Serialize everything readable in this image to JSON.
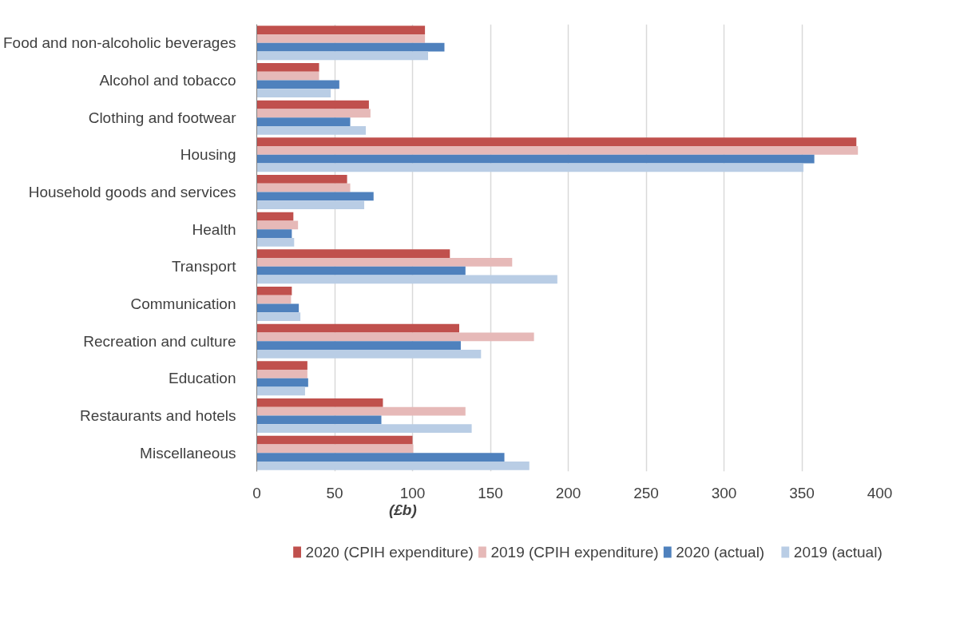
{
  "chart_data": {
    "type": "bar",
    "orientation": "horizontal",
    "xlabel": "(£b)",
    "categories": [
      "Food and non-alcoholic beverages",
      "Alcohol and tobacco",
      "Clothing and footwear",
      "Housing",
      "Household goods and services",
      "Health",
      "Transport",
      "Communication",
      "Recreation and culture",
      "Education",
      "Restaurants and hotels",
      "Miscellaneous"
    ],
    "series": [
      {
        "name": "2020 (CPIH expenditure)",
        "color": "#c0504d",
        "values": [
          108,
          40,
          72,
          385,
          58,
          23.5,
          124,
          22.5,
          130,
          32.5,
          81,
          100
        ]
      },
      {
        "name": "2019 (CPIH expenditure)",
        "color": "#e6b9b8",
        "values": [
          108,
          40,
          73,
          386,
          60,
          26.5,
          164,
          22,
          178,
          32.5,
          134,
          100.5
        ]
      },
      {
        "name": "2020 (actual)",
        "color": "#4f81bd",
        "values": [
          120.5,
          53,
          60,
          358,
          75,
          22.5,
          134,
          27,
          131,
          33,
          80,
          159
        ]
      },
      {
        "name": "2019 (actual)",
        "color": "#b9cde5",
        "values": [
          110,
          47.5,
          70,
          351,
          69,
          24,
          193,
          28,
          144,
          31,
          138,
          175
        ]
      }
    ],
    "xlim": [
      0,
      400
    ],
    "xticks": [
      0,
      50,
      100,
      150,
      200,
      250,
      300,
      350,
      400
    ],
    "grid": "x",
    "legend": "bottom"
  }
}
